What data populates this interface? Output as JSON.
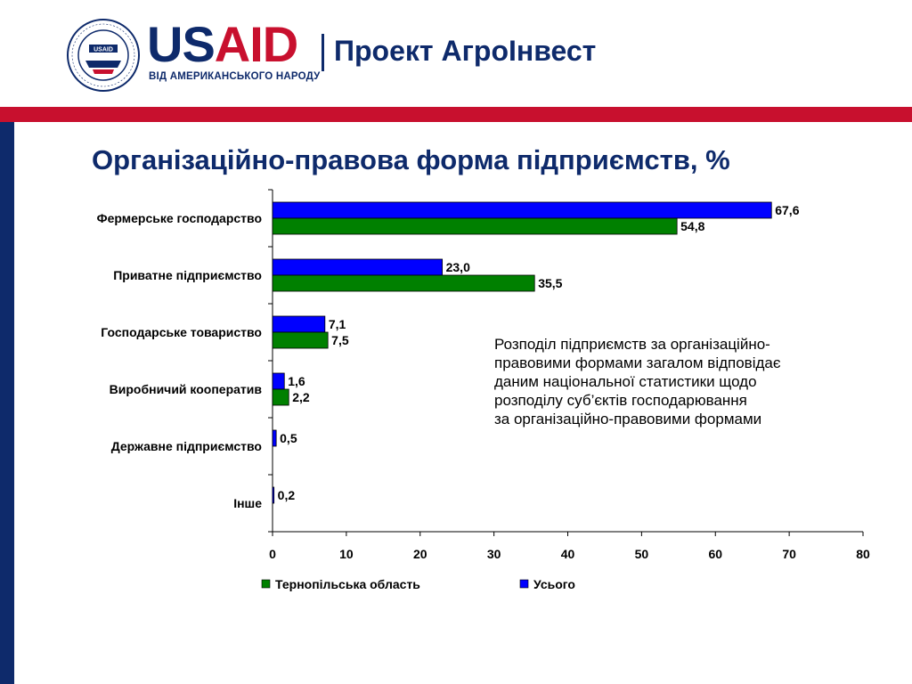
{
  "header": {
    "brand_us": "US",
    "brand_aid": "AID",
    "tagline": "ВІД АМЕРИКАНСЬКОГО НАРОДУ",
    "project": "Проект АгроІнвест",
    "seal_text": "UNITED STATES AGENCY · INTERNATIONAL DEVELOPMENT",
    "seal_inner": "USAID"
  },
  "title": "Організаційно-правова форма підприємств, %",
  "note_lines": [
    "Розподіл підприємств за організаційно-",
    "правовими формами загалом відповідає",
    "даним національної статистики щодо",
    "розподілу суб’єктів господарювання",
    "за організаційно-правовими формами"
  ],
  "colors": {
    "navy": "#0e2a6b",
    "red": "#c8102e",
    "series_total": "#0000ff",
    "series_ternopil": "#008000"
  },
  "chart_data": {
    "type": "bar",
    "orientation": "horizontal",
    "categories": [
      "Фермерське господарство",
      "Приватне підприємство",
      "Господарське товариство",
      "Виробничий кооператив",
      "Державне підприємство",
      "Інше"
    ],
    "series": [
      {
        "name": "Усього",
        "color": "#0000ff",
        "values": [
          67.6,
          23.0,
          7.1,
          1.6,
          0.5,
          0.2
        ],
        "labels": [
          "67,6",
          "23,0",
          "7,1",
          "1,6",
          "0,5",
          "0,2"
        ]
      },
      {
        "name": "Тернопільська область",
        "color": "#008000",
        "values": [
          54.8,
          35.5,
          7.5,
          2.2,
          null,
          null
        ],
        "labels": [
          "54,8",
          "35,5",
          "7,5",
          "2,2",
          "",
          ""
        ]
      }
    ],
    "xlim": [
      0,
      80
    ],
    "xticks": [
      0,
      10,
      20,
      30,
      40,
      50,
      60,
      70,
      80
    ],
    "legend": [
      "Тернопільська область",
      "Усього"
    ],
    "legend_position": "bottom",
    "grid": false
  }
}
